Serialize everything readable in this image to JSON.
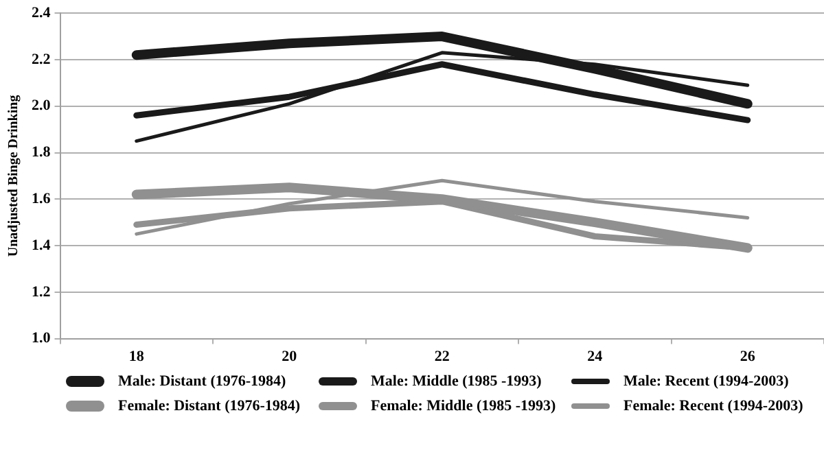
{
  "chart_data": {
    "type": "line",
    "ylabel": "Unadjusted Binge Drinking",
    "categories": [
      "18",
      "20",
      "22",
      "24",
      "26"
    ],
    "series": [
      {
        "name": "Male: Distant (1976-1984)",
        "color": "#1a1a1a",
        "values": [
          2.22,
          2.27,
          2.3,
          2.16,
          2.01
        ]
      },
      {
        "name": "Male: Middle (1985 -1993)",
        "color": "#1a1a1a",
        "values": [
          1.96,
          2.04,
          2.18,
          2.05,
          1.94
        ]
      },
      {
        "name": "Male: Recent (1994-2003)",
        "color": "#1a1a1a",
        "values": [
          1.85,
          2.01,
          2.23,
          2.18,
          2.09
        ]
      },
      {
        "name": "Female: Distant (1976-1984)",
        "color": "#909090",
        "values": [
          1.62,
          1.65,
          1.6,
          1.5,
          1.39
        ]
      },
      {
        "name": "Female: Middle (1985 -1993)",
        "color": "#909090",
        "values": [
          1.49,
          1.56,
          1.59,
          1.44,
          1.39
        ]
      },
      {
        "name": "Female: Recent (1994-2003)",
        "color": "#909090",
        "values": [
          1.45,
          1.58,
          1.68,
          1.59,
          1.52
        ]
      }
    ],
    "ylim": [
      1.0,
      2.4
    ],
    "yticks": [
      {
        "value": 1.0,
        "label": "1.0"
      },
      {
        "value": 1.2,
        "label": "1.2"
      },
      {
        "value": 1.4,
        "label": "1.4"
      },
      {
        "value": 1.6,
        "label": "1.6"
      },
      {
        "value": 1.8,
        "label": "1.8"
      },
      {
        "value": 2.0,
        "label": "2.0"
      },
      {
        "value": 2.2,
        "label": "2.2"
      },
      {
        "value": 2.4,
        "label": "2.4"
      }
    ],
    "grid": "y",
    "legend": "bottom",
    "marker": "none",
    "line_style": "solid"
  }
}
